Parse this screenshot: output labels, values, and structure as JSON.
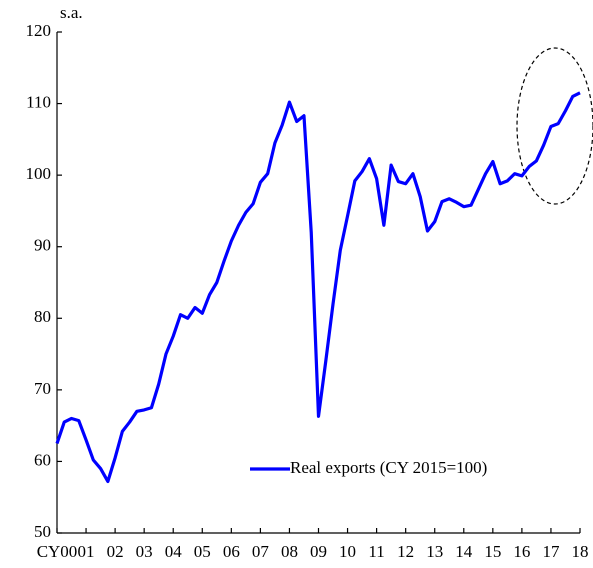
{
  "chart_data": {
    "type": "line",
    "annotation": "s.a.",
    "categories": [
      "CY00",
      null,
      null,
      null,
      "01",
      null,
      null,
      null,
      "02",
      null,
      null,
      null,
      "03",
      null,
      null,
      null,
      "04",
      null,
      null,
      null,
      "05",
      null,
      null,
      null,
      "06",
      null,
      null,
      null,
      "07",
      null,
      null,
      null,
      "08",
      null,
      null,
      null,
      "09",
      null,
      null,
      null,
      "10",
      null,
      null,
      null,
      "11",
      null,
      null,
      null,
      "12",
      null,
      null,
      null,
      "13",
      null,
      null,
      null,
      "14",
      null,
      null,
      null,
      "15",
      null,
      null,
      null,
      "16",
      null,
      null,
      null,
      "17",
      null,
      null,
      null,
      "18"
    ],
    "series": [
      {
        "name": "Real exports (CY 2015=100)",
        "color": "#0000ff",
        "values": [
          62.5,
          65.5,
          66,
          65.7,
          63,
          60.2,
          59,
          57.2,
          60.5,
          64.2,
          65.5,
          67,
          67.2,
          67.5,
          70.8,
          75,
          77.5,
          80.5,
          80,
          81.5,
          80.7,
          83.3,
          85,
          88,
          90.8,
          93,
          94.8,
          96,
          99,
          100.2,
          104.5,
          107,
          110.2,
          107.5,
          108.3,
          92,
          66.3,
          74,
          82,
          89.5,
          94.3,
          99.2,
          100.5,
          102.3,
          99.5,
          93,
          101.4,
          99.1,
          98.8,
          100.2,
          97,
          92.2,
          93.5,
          96.3,
          96.7,
          96.2,
          95.6,
          95.8,
          98,
          100.2,
          101.9,
          98.8,
          99.2,
          100.2,
          99.9,
          101.2,
          102,
          104.2,
          106.8,
          107.2,
          109,
          111,
          111.5
        ]
      }
    ],
    "ylim": [
      50,
      120
    ],
    "yticks": [
      50,
      60,
      70,
      80,
      90,
      100,
      110,
      120
    ],
    "legend": "lower right"
  }
}
